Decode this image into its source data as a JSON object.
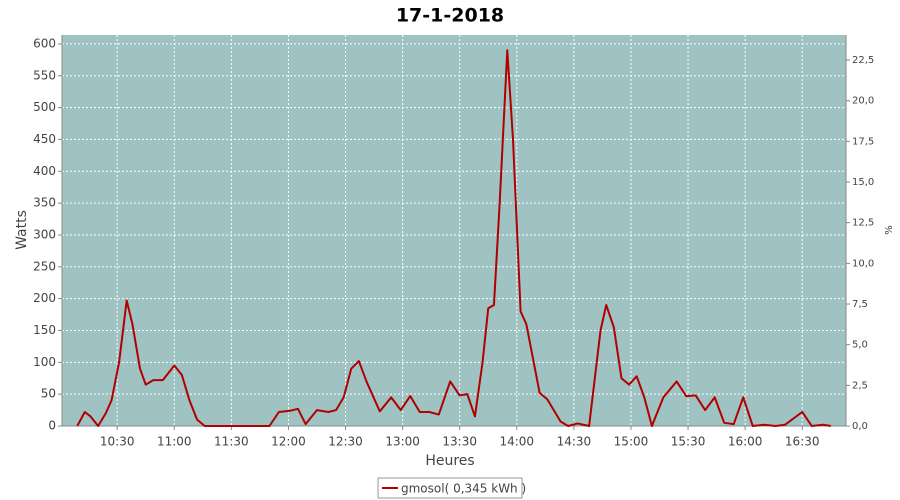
{
  "chart_data": {
    "type": "line",
    "title": "17-1-2018",
    "xlabel": "Heures",
    "ylabel": "Watts",
    "y2label": "%",
    "x": [
      "10:09",
      "10:13",
      "10:16",
      "10:20",
      "10:24",
      "10:27",
      "10:31",
      "10:35",
      "10:38",
      "10:42",
      "10:45",
      "10:49",
      "10:54",
      "11:00",
      "11:04",
      "11:08",
      "11:12",
      "11:16",
      "11:39",
      "11:50",
      "11:55",
      "12:01",
      "12:05",
      "12:09",
      "12:15",
      "12:21",
      "12:25",
      "12:29",
      "12:33",
      "12:37",
      "12:41",
      "12:48",
      "12:54",
      "12:59",
      "13:04",
      "13:09",
      "13:14",
      "13:19",
      "13:25",
      "13:30",
      "13:34",
      "13:38",
      "13:42",
      "13:45",
      "13:48",
      "13:51",
      "13:55",
      "13:58",
      "14:02",
      "14:05",
      "14:12",
      "14:16",
      "14:23",
      "14:27",
      "14:32",
      "14:38",
      "14:44",
      "14:47",
      "14:51",
      "14:55",
      "14:59",
      "15:03",
      "15:07",
      "15:11",
      "15:17",
      "15:24",
      "15:29",
      "15:34",
      "15:39",
      "15:44",
      "15:49",
      "15:54",
      "15:59",
      "16:04",
      "16:10",
      "16:16",
      "16:21",
      "16:30",
      "16:35",
      "16:41",
      "16:45"
    ],
    "series": [
      {
        "name": "gmosol( 0,345 kWh )",
        "color": "#b00000",
        "values": [
          0,
          22,
          15,
          0,
          20,
          40,
          100,
          197,
          160,
          90,
          65,
          72,
          72,
          95,
          80,
          40,
          10,
          0,
          0,
          0,
          22,
          24,
          27,
          3,
          25,
          22,
          25,
          45,
          90,
          102,
          70,
          23,
          45,
          25,
          47,
          22,
          22,
          18,
          70,
          48,
          50,
          15,
          100,
          185,
          190,
          350,
          590,
          450,
          180,
          160,
          52,
          42,
          7,
          0,
          4,
          0,
          150,
          190,
          155,
          75,
          65,
          78,
          45,
          0,
          45,
          70,
          47,
          48,
          25,
          45,
          5,
          3,
          45,
          0,
          2,
          0,
          2,
          22,
          0,
          2,
          0
        ]
      }
    ],
    "xlim": [
      "10:01",
      "16:53"
    ],
    "xticks": [
      "10:30",
      "11:00",
      "11:30",
      "12:00",
      "12:30",
      "13:00",
      "13:30",
      "14:00",
      "14:30",
      "15:00",
      "15:30",
      "16:00",
      "16:30"
    ],
    "ylim": [
      0,
      614
    ],
    "yticks": [
      0,
      50,
      100,
      150,
      200,
      250,
      300,
      350,
      400,
      450,
      500,
      550,
      600
    ],
    "y2lim": [
      0,
      24.04
    ],
    "y2ticks": [
      {
        "value": 0,
        "label": "0,0"
      },
      {
        "value": 2.5,
        "label": "2,5"
      },
      {
        "value": 5,
        "label": "5,0"
      },
      {
        "value": 7.5,
        "label": "7,5"
      },
      {
        "value": 10,
        "label": "10,0"
      },
      {
        "value": 12.5,
        "label": "12,5"
      },
      {
        "value": 15,
        "label": "15,0"
      },
      {
        "value": 17.5,
        "label": "17,5"
      },
      {
        "value": 20,
        "label": "20,0"
      },
      {
        "value": 22.5,
        "label": "22,5"
      }
    ],
    "grid": true
  }
}
